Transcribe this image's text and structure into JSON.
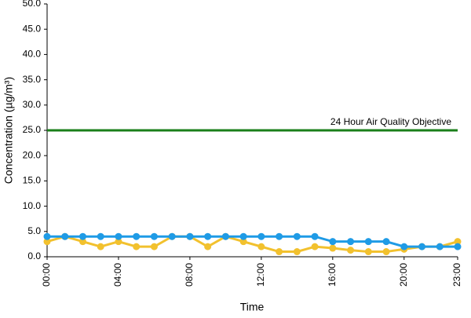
{
  "chart_data": {
    "type": "line",
    "y_label": "Concentration (µg/m³)",
    "x_label": "Time",
    "categories": [
      "00:00",
      null,
      null,
      null,
      "04:00",
      null,
      null,
      null,
      "08:00",
      null,
      null,
      null,
      "12:00",
      null,
      null,
      null,
      "16:00",
      null,
      null,
      null,
      "20:00",
      null,
      null,
      "23:00"
    ],
    "series": [
      {
        "color": "#f2c12e",
        "values": [
          3,
          4,
          3,
          2,
          3,
          2,
          2,
          4,
          4,
          2,
          4,
          3,
          2,
          1,
          1,
          2,
          1.7,
          1.3,
          1,
          1,
          1.5,
          2,
          2,
          3
        ]
      },
      {
        "color": "#1f9be6",
        "values": [
          4,
          4,
          4,
          4,
          4,
          4,
          4,
          4,
          4,
          4,
          4,
          4,
          4,
          4,
          4,
          4,
          3,
          3,
          3,
          3,
          2,
          2,
          2,
          2
        ]
      }
    ],
    "reference_line": {
      "value": 25,
      "label": "24 Hour Air Quality Objective",
      "color": "#1a7f1a"
    },
    "ylim": [
      0,
      50
    ],
    "yticks": [
      {
        "value": 0,
        "label": "0.0"
      },
      {
        "value": 5,
        "label": "5.0"
      },
      {
        "value": 10,
        "label": "10.0"
      },
      {
        "value": 15,
        "label": "15.0"
      },
      {
        "value": 20,
        "label": "20.0"
      },
      {
        "value": 25,
        "label": "25.0"
      },
      {
        "value": 30,
        "label": "30.0"
      },
      {
        "value": 35,
        "label": "35.0"
      },
      {
        "value": 40,
        "label": "40.0"
      },
      {
        "value": 45,
        "label": "45.0"
      },
      {
        "value": 50,
        "label": "50.0"
      }
    ]
  }
}
